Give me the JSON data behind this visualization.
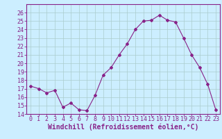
{
  "x": [
    0,
    1,
    2,
    3,
    4,
    5,
    6,
    7,
    8,
    9,
    10,
    11,
    12,
    13,
    14,
    15,
    16,
    17,
    18,
    19,
    20,
    21,
    22,
    23
  ],
  "y": [
    17.3,
    17.0,
    16.5,
    16.8,
    14.8,
    15.3,
    14.5,
    14.4,
    16.2,
    18.6,
    19.5,
    21.0,
    22.3,
    24.0,
    25.0,
    25.1,
    25.7,
    25.1,
    24.9,
    23.0,
    21.0,
    19.5,
    17.5,
    14.5
  ],
  "line_color": "#882288",
  "marker": "D",
  "marker_size": 2,
  "bg_color": "#cceeff",
  "grid_color": "#aacccc",
  "xlabel": "Windchill (Refroidissement éolien,°C)",
  "xlabel_fontsize": 7,
  "ylim": [
    14,
    27
  ],
  "xlim": [
    -0.5,
    23.5
  ],
  "yticks": [
    14,
    15,
    16,
    17,
    18,
    19,
    20,
    21,
    22,
    23,
    24,
    25,
    26
  ],
  "xticks": [
    0,
    1,
    2,
    3,
    4,
    5,
    6,
    7,
    8,
    9,
    10,
    11,
    12,
    13,
    14,
    15,
    16,
    17,
    18,
    19,
    20,
    21,
    22,
    23
  ],
  "tick_color": "#882288",
  "tick_fontsize": 6,
  "spine_color": "#882288",
  "border_color": "#882288"
}
